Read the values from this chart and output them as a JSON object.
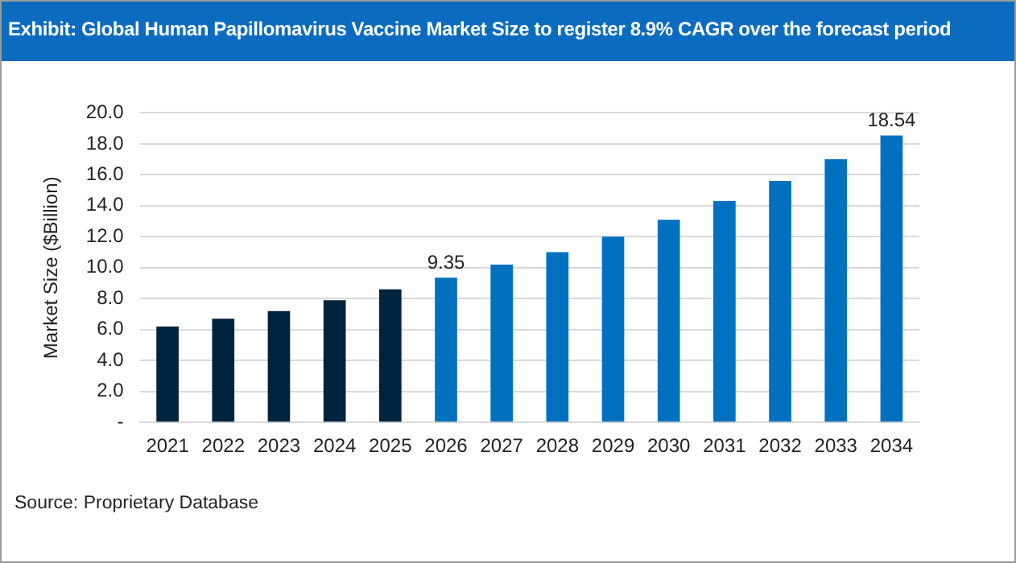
{
  "chart_data": {
    "type": "bar",
    "title": "Exhibit: Global Human Papillomavirus Vaccine Market Size to register 8.9% CAGR over the forecast period",
    "ylabel": "Market Size ($Billion)",
    "categories": [
      "2021",
      "2022",
      "2023",
      "2024",
      "2025",
      "2026",
      "2027",
      "2028",
      "2029",
      "2030",
      "2031",
      "2032",
      "2033",
      "2034"
    ],
    "values": [
      6.2,
      6.7,
      7.2,
      7.9,
      8.6,
      9.35,
      10.2,
      11.0,
      12.0,
      13.1,
      14.3,
      15.6,
      17.0,
      18.54
    ],
    "value_labels": [
      null,
      null,
      null,
      null,
      null,
      "9.35",
      null,
      null,
      null,
      null,
      null,
      null,
      null,
      "18.54"
    ],
    "colors": [
      "#002340",
      "#002340",
      "#002340",
      "#002340",
      "#002340",
      "#0070c0",
      "#0070c0",
      "#0070c0",
      "#0070c0",
      "#0070c0",
      "#0070c0",
      "#0070c0",
      "#0070c0",
      "#0070c0"
    ],
    "ylim": [
      0,
      20
    ],
    "yticks": [
      {
        "value": 0,
        "label": "-"
      },
      {
        "value": 2,
        "label": "2.0"
      },
      {
        "value": 4,
        "label": "4.0"
      },
      {
        "value": 6,
        "label": "6.0"
      },
      {
        "value": 8,
        "label": "8.0"
      },
      {
        "value": 10,
        "label": "10.0"
      },
      {
        "value": 12,
        "label": "12.0"
      },
      {
        "value": 14,
        "label": "14.0"
      },
      {
        "value": 16,
        "label": "16.0"
      },
      {
        "value": 18,
        "label": "18.0"
      },
      {
        "value": 20,
        "label": "20.0"
      }
    ],
    "grid": "y",
    "legend": false,
    "annotations": [
      "Source: Proprietary Database"
    ]
  }
}
